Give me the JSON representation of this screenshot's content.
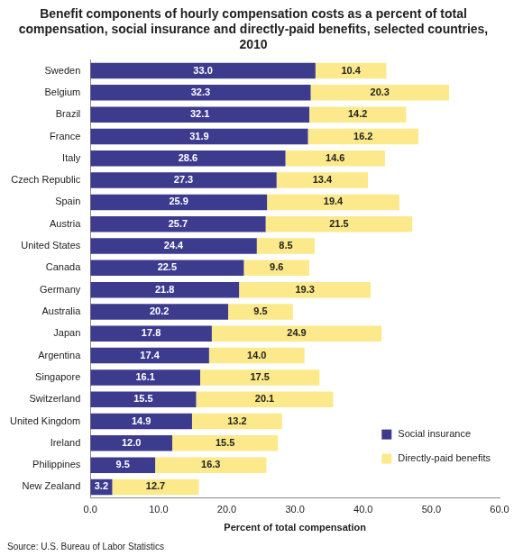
{
  "chart_data": {
    "type": "bar",
    "title": "Benefit components of hourly compensation costs as a percent of total compensation, social insurance and directly-paid benefits, selected countries, 2010",
    "source": "Source: U.S. Bureau of Labor Statistics",
    "xlabel": "Percent of total compensation",
    "orientation": "horizontal",
    "stacked": true,
    "data_labels": true,
    "grid": false,
    "legend": "lower right",
    "categories": [
      "Sweden",
      "Belgium",
      "Brazil",
      "France",
      "Italy",
      "Czech Republic",
      "Spain",
      "Austria",
      "United States",
      "Canada",
      "Germany",
      "Australia",
      "Japan",
      "Argentina",
      "Singapore",
      "Switzerland",
      "United Kingdom",
      "Ireland",
      "Philippines",
      "New Zealand"
    ],
    "series": [
      {
        "name": "Social insurance",
        "color": "#3d3b8e",
        "values": [
          33.0,
          32.3,
          32.1,
          31.9,
          28.6,
          27.3,
          25.9,
          25.7,
          24.4,
          22.5,
          21.8,
          20.2,
          17.8,
          17.4,
          16.1,
          15.5,
          14.9,
          12.0,
          9.5,
          3.2
        ],
        "value_labels": [
          "33.0",
          "32.3",
          "32.1",
          "31.9",
          "28.6",
          "27.3",
          "25.9",
          "25.7",
          "24.4",
          "22.5",
          "21.8",
          "20.2",
          "17.8",
          "17.4",
          "16.1",
          "15.5",
          "14.9",
          "12.0",
          "9.5",
          "3.2"
        ]
      },
      {
        "name": "Directly-paid benefits",
        "color": "#fbe98b",
        "values": [
          10.4,
          20.3,
          14.2,
          16.2,
          14.6,
          13.4,
          19.4,
          21.5,
          8.5,
          9.6,
          19.3,
          9.5,
          24.9,
          14.0,
          17.5,
          20.1,
          13.2,
          15.5,
          16.3,
          12.7
        ],
        "value_labels": [
          "10.4",
          "20.3",
          "14.2",
          "16.2",
          "14.6",
          "13.4",
          "19.4",
          "21.5",
          "8.5",
          "9.6",
          "19.3",
          "9.5",
          "24.9",
          "14.0",
          "17.5",
          "20.1",
          "13.2",
          "15.5",
          "16.3",
          "12.7"
        ]
      }
    ],
    "xlim": [
      0,
      60
    ],
    "xticks": [
      {
        "value": 0,
        "label": "0.0"
      },
      {
        "value": 10,
        "label": "10.0"
      },
      {
        "value": 20,
        "label": "20.0"
      },
      {
        "value": 30,
        "label": "30.0"
      },
      {
        "value": 40,
        "label": "40.0"
      },
      {
        "value": 50,
        "label": "50.0"
      },
      {
        "value": 60,
        "label": "60.0"
      }
    ]
  }
}
